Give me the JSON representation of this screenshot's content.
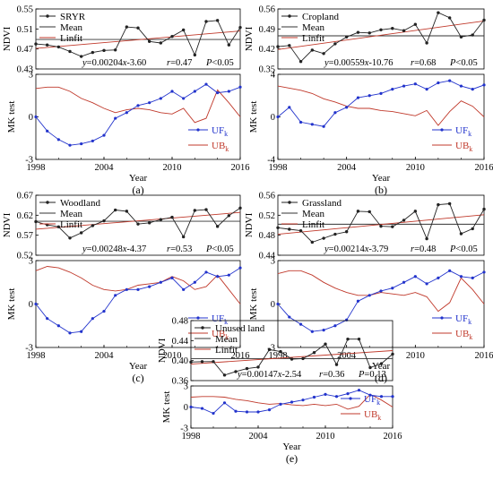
{
  "colors": {
    "ndvi": "#222222",
    "mean": "#333333",
    "linfit": "#c0392b",
    "uf": "#2233cc",
    "ub": "#c0392b"
  },
  "chart_data": [
    {
      "type": "line",
      "panel_label": "(a)",
      "legend": {
        "series": "SRYR",
        "mean": "Mean",
        "linfit": "Linfit"
      },
      "equation": "y=0.00204x-3.60",
      "r_text": "r=0.47",
      "p_text": "P<0.05",
      "ndvi_axis": {
        "label": "NDVI",
        "ylim": [
          0.43,
          0.55
        ],
        "ticks": [
          "0.55",
          "0.51",
          "0.47",
          "0.43"
        ]
      },
      "mk_axis": {
        "label": "MK test",
        "ylim": [
          -3,
          3
        ],
        "ticks": [
          "3",
          "0",
          "-3"
        ],
        "uf_label": "UFk",
        "ub_label": "UBk"
      },
      "xlabel": "Year",
      "xlim": [
        1998,
        2016
      ],
      "x_ticks": [
        "1998",
        "2004",
        "2010",
        "2016"
      ],
      "x": [
        1998,
        1999,
        2000,
        2001,
        2002,
        2003,
        2004,
        2005,
        2006,
        2007,
        2008,
        2009,
        2010,
        2011,
        2012,
        2013,
        2014,
        2015,
        2016
      ],
      "ndvi": [
        0.48,
        0.478,
        0.474,
        0.465,
        0.455,
        0.463,
        0.467,
        0.468,
        0.514,
        0.512,
        0.485,
        0.482,
        0.495,
        0.508,
        0.458,
        0.525,
        0.527,
        0.478,
        0.513
      ],
      "mean": 0.489,
      "linfit": [
        0.471,
        0.506
      ],
      "uf": [
        0,
        -1.0,
        -1.6,
        -2.0,
        -1.9,
        -1.7,
        -1.3,
        -0.1,
        0.3,
        0.8,
        1.0,
        1.3,
        1.8,
        1.3,
        1.8,
        2.3,
        1.7,
        1.8,
        2.1
      ],
      "ub": [
        2.0,
        2.1,
        2.1,
        1.8,
        1.3,
        1.0,
        0.6,
        0.3,
        0.5,
        0.6,
        0.5,
        0.3,
        0.2,
        0.6,
        -0.4,
        -0.1,
        1.9,
        1.0,
        0
      ]
    },
    {
      "type": "line",
      "panel_label": "(b)",
      "legend": {
        "series": "Cropland",
        "mean": "Mean",
        "linfit": "Linfit"
      },
      "equation": "y=0.00559x-10.76",
      "r_text": "r=0.68",
      "p_text": "P<0.05",
      "ndvi_axis": {
        "label": "NDVI",
        "ylim": [
          0.35,
          0.56
        ],
        "ticks": [
          "0.56",
          "0.49",
          "0.42",
          "0.35"
        ]
      },
      "mk_axis": {
        "label": "MK test",
        "ylim": [
          -4,
          4
        ],
        "ticks": [
          "4",
          "0",
          "-4"
        ],
        "uf_label": "UFk",
        "ub_label": "UBk"
      },
      "xlabel": "Year",
      "xlim": [
        1998,
        2016
      ],
      "x_ticks": [
        "1998",
        "2004",
        "2010",
        "2016"
      ],
      "x": [
        1998,
        1999,
        2000,
        2001,
        2002,
        2003,
        2004,
        2005,
        2006,
        2007,
        2008,
        2009,
        2010,
        2011,
        2012,
        2013,
        2014,
        2015,
        2016
      ],
      "ndvi": [
        0.428,
        0.432,
        0.376,
        0.416,
        0.404,
        0.438,
        0.462,
        0.478,
        0.476,
        0.487,
        0.492,
        0.484,
        0.506,
        0.441,
        0.547,
        0.529,
        0.462,
        0.469,
        0.521
      ],
      "mean": 0.466,
      "linfit": [
        0.418,
        0.518
      ],
      "uf": [
        0,
        0.9,
        -0.5,
        -0.7,
        -0.9,
        0.4,
        0.9,
        1.8,
        2.0,
        2.2,
        2.6,
        2.9,
        3.1,
        2.6,
        3.2,
        3.4,
        2.9,
        2.6,
        3.0
      ],
      "ub": [
        2.9,
        2.7,
        2.5,
        2.2,
        1.7,
        1.4,
        1.0,
        0.8,
        0.8,
        0.6,
        0.5,
        0.3,
        0.1,
        0.6,
        -0.8,
        0.5,
        1.5,
        1.0,
        0
      ]
    },
    {
      "type": "line",
      "panel_label": "(c)",
      "legend": {
        "series": "Woodland",
        "mean": "Mean",
        "linfit": "Linfit"
      },
      "equation": "y=0.00248x-4.37",
      "r_text": "r=0.53",
      "p_text": "P<0.05",
      "ndvi_axis": {
        "label": "NDVI",
        "ylim": [
          0.52,
          0.67
        ],
        "ticks": [
          "0.67",
          "0.62",
          "0.57",
          "0.52"
        ]
      },
      "mk_axis": {
        "label": "MK test",
        "ylim": [
          -3,
          3
        ],
        "ticks": [
          "3",
          "0",
          "-3"
        ],
        "uf_label": "UFk",
        "ub_label": "UBk"
      },
      "xlabel": "Year",
      "xlim": [
        1998,
        2016
      ],
      "x_ticks": [
        "1998",
        "2004",
        "2010",
        "2016"
      ],
      "x": [
        1998,
        1999,
        2000,
        2001,
        2002,
        2003,
        2004,
        2005,
        2006,
        2007,
        2008,
        2009,
        2010,
        2011,
        2012,
        2013,
        2014,
        2015,
        2016
      ],
      "ndvi": [
        0.604,
        0.596,
        0.591,
        0.563,
        0.576,
        0.594,
        0.606,
        0.633,
        0.63,
        0.598,
        0.601,
        0.609,
        0.615,
        0.566,
        0.632,
        0.634,
        0.592,
        0.619,
        0.638
      ],
      "mean": 0.605,
      "linfit": [
        0.585,
        0.627
      ],
      "uf": [
        0,
        -1.0,
        -1.5,
        -2.0,
        -1.9,
        -1.0,
        -0.5,
        0.6,
        1.0,
        1.0,
        1.2,
        1.5,
        1.8,
        1.0,
        1.5,
        2.2,
        1.9,
        2.0,
        2.5
      ],
      "ub": [
        2.3,
        2.6,
        2.5,
        2.2,
        1.8,
        1.3,
        1.0,
        0.9,
        1.0,
        1.3,
        1.4,
        1.5,
        1.9,
        1.6,
        1.0,
        1.2,
        2.0,
        1.0,
        0
      ]
    },
    {
      "type": "line",
      "panel_label": "(d)",
      "legend": {
        "series": "Grassland",
        "mean": "Mean",
        "linfit": "Linfit"
      },
      "equation": "y=0.00214x-3.79",
      "r_text": "r=0.48",
      "p_text": "P<0.05",
      "ndvi_axis": {
        "label": "NDVI",
        "ylim": [
          0.44,
          0.56
        ],
        "ticks": [
          "0.56",
          "0.52",
          "0.48",
          "0.44"
        ]
      },
      "mk_axis": {
        "label": "MK test",
        "ylim": [
          -3,
          3
        ],
        "ticks": [
          "3",
          "0",
          "-3"
        ],
        "uf_label": "UFk",
        "ub_label": "UBk"
      },
      "xlabel": "Year",
      "xlim": [
        1998,
        2016
      ],
      "x_ticks": [
        "1998",
        "2004",
        "2010",
        "2016"
      ],
      "x": [
        1998,
        1999,
        2000,
        2001,
        2002,
        2003,
        2004,
        2005,
        2006,
        2007,
        2008,
        2009,
        2010,
        2011,
        2012,
        2013,
        2014,
        2015,
        2016
      ],
      "ndvi": [
        0.495,
        0.492,
        0.489,
        0.466,
        0.474,
        0.482,
        0.487,
        0.528,
        0.527,
        0.498,
        0.497,
        0.51,
        0.528,
        0.473,
        0.541,
        0.543,
        0.483,
        0.493,
        0.532
      ],
      "mean": 0.502,
      "linfit": [
        0.482,
        0.521
      ],
      "uf": [
        0,
        -0.9,
        -1.4,
        -1.9,
        -1.8,
        -1.5,
        -1.1,
        0.2,
        0.6,
        0.9,
        1.1,
        1.5,
        1.9,
        1.4,
        1.8,
        2.3,
        1.9,
        1.8,
        2.2
      ],
      "ub": [
        2.1,
        2.3,
        2.3,
        2.0,
        1.5,
        1.1,
        0.8,
        0.6,
        0.6,
        0.8,
        0.7,
        0.6,
        0.8,
        0.5,
        -0.5,
        0.1,
        1.8,
        1.0,
        0
      ]
    },
    {
      "type": "line",
      "panel_label": "(e)",
      "legend": {
        "series": "Unused land",
        "mean": "Mean",
        "linfit": "Linfit"
      },
      "equation": "y=0.00147x-2.54",
      "r_text": "r=0.36",
      "p_text": "P=0.13",
      "ndvi_axis": {
        "label": "NDVI",
        "ylim": [
          0.36,
          0.48
        ],
        "ticks": [
          "0.48",
          "0.44",
          "0.40",
          "0.36"
        ]
      },
      "mk_axis": {
        "label": "MK test",
        "ylim": [
          -3,
          3
        ],
        "ticks": [
          "3",
          "0",
          "-3"
        ],
        "uf_label": "UFk",
        "ub_label": "UBk"
      },
      "xlabel": "Year",
      "xlim": [
        1998,
        2016
      ],
      "x_ticks": [
        "1998",
        "2004",
        "2010",
        "2016"
      ],
      "x": [
        1998,
        1999,
        2000,
        2001,
        2002,
        2003,
        2004,
        2005,
        2006,
        2007,
        2008,
        2009,
        2010,
        2011,
        2012,
        2013,
        2014,
        2015,
        2016
      ],
      "ndvi": [
        0.397,
        0.398,
        0.398,
        0.371,
        0.378,
        0.384,
        0.387,
        0.422,
        0.418,
        0.403,
        0.404,
        0.416,
        0.433,
        0.392,
        0.443,
        0.443,
        0.386,
        0.394,
        0.413
      ],
      "mean": 0.404,
      "linfit": [
        0.393,
        0.42
      ],
      "uf": [
        0,
        -0.2,
        -0.9,
        0.6,
        -0.6,
        -0.7,
        -0.7,
        -0.4,
        0.4,
        0.7,
        1.0,
        1.4,
        1.8,
        1.5,
        1.9,
        2.4,
        1.7,
        1.5,
        1.5
      ],
      "ub": [
        1.4,
        1.5,
        1.5,
        1.4,
        1.1,
        0.9,
        0.6,
        0.4,
        0.5,
        0.3,
        0.2,
        0.4,
        0.2,
        0.4,
        -0.3,
        0.1,
        1.8,
        1.0,
        0
      ]
    }
  ]
}
